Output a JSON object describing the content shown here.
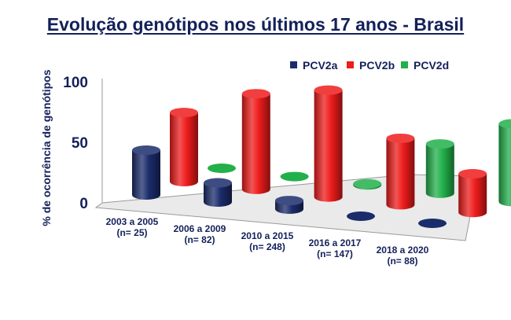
{
  "chart_data": {
    "type": "bar",
    "title": "Evolução genótipos nos últimos 17 anos - Brasil",
    "ylabel": "% de ocorrência de genótipos",
    "xlabel": "",
    "ylim": [
      0,
      100
    ],
    "yticks": [
      "0",
      "50",
      "100"
    ],
    "legend_position": "top-right",
    "categories": [
      [
        "2003 a 2005",
        "(n= 25)"
      ],
      [
        "2006 a 2009",
        "(n= 82)"
      ],
      [
        "2010 a 2015",
        "(n= 248)"
      ],
      [
        "2016 a 2017",
        "(n= 147)"
      ],
      [
        "2018 a 2020",
        "(n= 88)"
      ]
    ],
    "series": [
      {
        "name": "PCV2a",
        "color": "#1b2c6b",
        "values": [
          38,
          16,
          7,
          0,
          0
        ]
      },
      {
        "name": "PCV2b",
        "color": "#ee1c1c",
        "values": [
          62,
          84,
          92,
          56,
          32
        ]
      },
      {
        "name": "PCV2d",
        "color": "#22b04b",
        "values": [
          0,
          0,
          1,
          44,
          68
        ]
      }
    ]
  }
}
